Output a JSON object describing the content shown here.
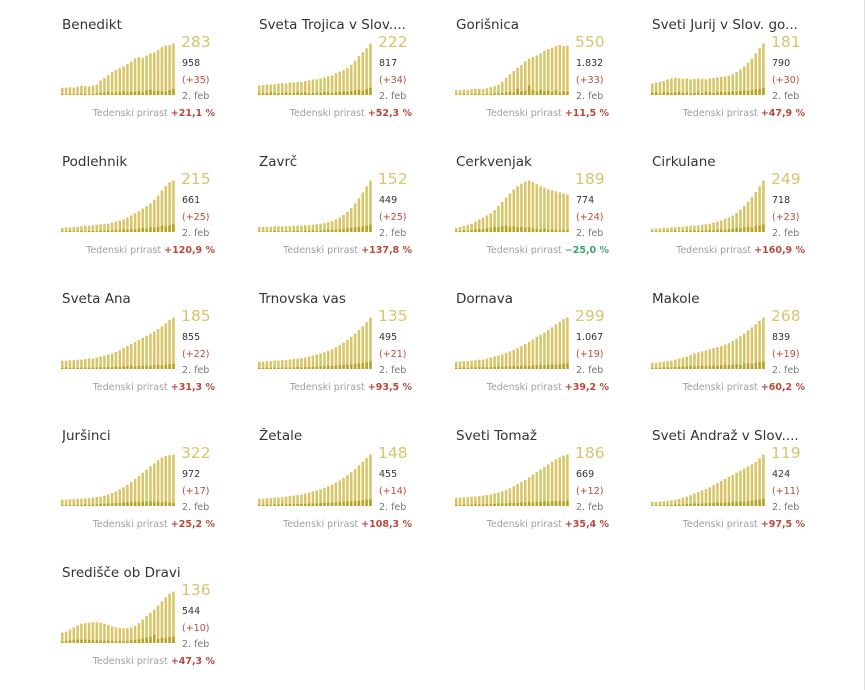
{
  "colors": {
    "area_fill": "#d8c566",
    "bar_dark": "#b6a121",
    "active_number": "#d7c56f",
    "increase": "#b84a3c",
    "decrease": "#3aa568"
  },
  "chart_data": [
    {
      "type": "bar",
      "title": "Benedikt",
      "active": "283",
      "total": "958",
      "daily_new": "(+35)",
      "date": "2. feb",
      "weekly_label": "Tedenski prirast",
      "weekly_growth": "+21,1 %",
      "trend": "up",
      "active_series": [
        14,
        14,
        15,
        14,
        16,
        18,
        17,
        16,
        18,
        20,
        28,
        33,
        38,
        44,
        48,
        52,
        55,
        60,
        64,
        70,
        73,
        71,
        76,
        80,
        82,
        86,
        92,
        95,
        96,
        99
      ],
      "new_series": [
        2,
        1,
        2,
        1,
        2,
        3,
        2,
        1,
        2,
        3,
        4,
        5,
        6,
        4,
        5,
        6,
        7,
        5,
        6,
        6,
        8,
        5,
        9,
        10,
        7,
        8,
        7,
        6,
        9,
        12
      ]
    },
    {
      "type": "bar",
      "title": "Sveta Trojica v Slov....",
      "active": "222",
      "total": "817",
      "daily_new": "(+34)",
      "date": "2. feb",
      "weekly_label": "Tedenski prirast",
      "weekly_growth": "+52,3 %",
      "trend": "up",
      "active_series": [
        18,
        19,
        20,
        20,
        21,
        22,
        23,
        22,
        24,
        24,
        25,
        25,
        27,
        28,
        30,
        30,
        32,
        34,
        36,
        38,
        42,
        45,
        48,
        52,
        58,
        66,
        75,
        82,
        90,
        99
      ],
      "new_series": [
        3,
        4,
        3,
        5,
        4,
        3,
        4,
        5,
        3,
        4,
        6,
        4,
        5,
        3,
        4,
        5,
        4,
        6,
        5,
        4,
        5,
        6,
        7,
        6,
        8,
        9,
        10,
        8,
        11,
        14
      ]
    },
    {
      "type": "bar",
      "title": "Gorišnica",
      "active": "550",
      "total": "1.832",
      "daily_new": "(+33)",
      "date": "2. feb",
      "weekly_label": "Tedenski prirast",
      "weekly_growth": "+11,5 %",
      "trend": "up",
      "active_series": [
        9,
        9,
        10,
        10,
        11,
        12,
        12,
        11,
        13,
        15,
        17,
        20,
        25,
        33,
        40,
        46,
        52,
        58,
        65,
        70,
        73,
        76,
        80,
        85,
        88,
        91,
        94,
        96,
        94,
        95
      ],
      "new_series": [
        1,
        1,
        2,
        1,
        1,
        2,
        2,
        1,
        2,
        2,
        3,
        3,
        4,
        5,
        6,
        5,
        12,
        7,
        8,
        18,
        9,
        6,
        10,
        7,
        8,
        6,
        9,
        5,
        7,
        6
      ]
    },
    {
      "type": "bar",
      "title": "Sveti Jurij v Slov. go...",
      "active": "181",
      "total": "790",
      "daily_new": "(+30)",
      "date": "2. feb",
      "weekly_label": "Tedenski prirast",
      "weekly_growth": "+47,9 %",
      "trend": "up",
      "active_series": [
        22,
        24,
        25,
        27,
        30,
        32,
        33,
        32,
        31,
        32,
        30,
        31,
        32,
        31,
        30,
        32,
        33,
        34,
        35,
        36,
        37,
        40,
        44,
        49,
        55,
        62,
        70,
        80,
        90,
        99
      ],
      "new_series": [
        4,
        5,
        3,
        6,
        5,
        4,
        5,
        6,
        4,
        5,
        3,
        4,
        5,
        4,
        6,
        5,
        4,
        5,
        6,
        5,
        6,
        7,
        6,
        8,
        9,
        8,
        10,
        11,
        12,
        14
      ]
    },
    {
      "type": "bar",
      "title": "Podlehnik",
      "active": "215",
      "total": "661",
      "daily_new": "(+25)",
      "date": "2. feb",
      "weekly_label": "Tedenski prirast",
      "weekly_growth": "+120,9 %",
      "trend": "up",
      "active_series": [
        8,
        9,
        9,
        10,
        10,
        11,
        12,
        12,
        13,
        14,
        15,
        15,
        16,
        18,
        20,
        22,
        24,
        28,
        32,
        36,
        40,
        45,
        50,
        55,
        62,
        70,
        80,
        88,
        96,
        99
      ],
      "new_series": [
        1,
        1,
        2,
        1,
        1,
        2,
        1,
        2,
        2,
        2,
        3,
        2,
        3,
        3,
        4,
        3,
        5,
        4,
        6,
        5,
        6,
        8,
        7,
        9,
        8,
        10,
        12,
        11,
        13,
        15
      ]
    },
    {
      "type": "bar",
      "title": "Zavrč",
      "active": "152",
      "total": "449",
      "daily_new": "(+25)",
      "date": "2. feb",
      "weekly_label": "Tedenski prirast",
      "weekly_growth": "+137,8 %",
      "trend": "up",
      "active_series": [
        10,
        10,
        10,
        10,
        11,
        11,
        11,
        11,
        11,
        12,
        12,
        12,
        13,
        13,
        14,
        15,
        16,
        17,
        19,
        21,
        24,
        28,
        33,
        39,
        46,
        55,
        65,
        76,
        88,
        99
      ],
      "new_series": [
        1,
        1,
        1,
        1,
        2,
        1,
        1,
        2,
        1,
        2,
        2,
        1,
        2,
        2,
        3,
        2,
        3,
        3,
        4,
        4,
        5,
        5,
        6,
        7,
        8,
        9,
        10,
        11,
        12,
        14
      ]
    },
    {
      "type": "bar",
      "title": "Cerkvenjak",
      "active": "189",
      "total": "774",
      "daily_new": "(+24)",
      "date": "2. feb",
      "weekly_label": "Tedenski prirast",
      "weekly_growth": "−25,0 %",
      "trend": "down",
      "active_series": [
        8,
        10,
        12,
        14,
        16,
        20,
        24,
        28,
        32,
        36,
        42,
        50,
        58,
        66,
        74,
        82,
        88,
        93,
        97,
        99,
        96,
        92,
        88,
        85,
        82,
        80,
        78,
        76,
        74,
        72
      ],
      "new_series": [
        1,
        2,
        3,
        2,
        4,
        5,
        6,
        5,
        7,
        8,
        10,
        9,
        11,
        12,
        10,
        11,
        9,
        10,
        8,
        9,
        7,
        6,
        5,
        6,
        4,
        5,
        4,
        3,
        4,
        3
      ]
    },
    {
      "type": "bar",
      "title": "Cirkulane",
      "active": "249",
      "total": "718",
      "daily_new": "(+23)",
      "date": "2. feb",
      "weekly_label": "Tedenski prirast",
      "weekly_growth": "+160,9 %",
      "trend": "up",
      "active_series": [
        6,
        7,
        7,
        8,
        8,
        9,
        9,
        10,
        10,
        11,
        12,
        12,
        13,
        14,
        15,
        16,
        18,
        20,
        22,
        25,
        28,
        32,
        37,
        43,
        50,
        58,
        67,
        77,
        88,
        99
      ],
      "new_series": [
        1,
        1,
        1,
        1,
        2,
        1,
        2,
        1,
        2,
        2,
        2,
        3,
        2,
        3,
        3,
        4,
        3,
        4,
        5,
        4,
        5,
        6,
        8,
        7,
        9,
        10,
        9,
        11,
        12,
        14
      ]
    },
    {
      "type": "bar",
      "title": "Sveta Ana",
      "active": "185",
      "total": "855",
      "daily_new": "(+22)",
      "date": "2. feb",
      "weekly_label": "Tedenski prirast",
      "weekly_growth": "+31,3 %",
      "trend": "up",
      "active_series": [
        16,
        16,
        17,
        17,
        18,
        18,
        19,
        20,
        20,
        22,
        24,
        26,
        28,
        30,
        33,
        36,
        40,
        44,
        48,
        52,
        56,
        60,
        64,
        68,
        72,
        77,
        82,
        88,
        94,
        99
      ],
      "new_series": [
        2,
        3,
        2,
        3,
        2,
        3,
        3,
        2,
        3,
        3,
        4,
        3,
        4,
        4,
        5,
        4,
        5,
        5,
        6,
        5,
        6,
        6,
        7,
        6,
        7,
        8,
        7,
        8,
        9,
        10
      ]
    },
    {
      "type": "bar",
      "title": "Trnovska vas",
      "active": "135",
      "total": "495",
      "daily_new": "(+21)",
      "date": "2. feb",
      "weekly_label": "Tedenski prirast",
      "weekly_growth": "+93,5 %",
      "trend": "up",
      "active_series": [
        14,
        14,
        15,
        15,
        16,
        16,
        17,
        17,
        18,
        19,
        20,
        21,
        22,
        24,
        26,
        28,
        30,
        32,
        35,
        38,
        42,
        46,
        51,
        56,
        62,
        68,
        75,
        82,
        90,
        99
      ],
      "new_series": [
        2,
        2,
        3,
        2,
        3,
        2,
        3,
        3,
        3,
        3,
        4,
        3,
        4,
        4,
        4,
        5,
        5,
        5,
        6,
        6,
        7,
        7,
        8,
        8,
        9,
        10,
        11,
        12,
        13,
        15
      ]
    },
    {
      "type": "bar",
      "title": "Dornava",
      "active": "299",
      "total": "1.067",
      "daily_new": "(+19)",
      "date": "2. feb",
      "weekly_label": "Tedenski prirast",
      "weekly_growth": "+39,2 %",
      "trend": "up",
      "active_series": [
        14,
        14,
        15,
        15,
        16,
        17,
        18,
        18,
        20,
        22,
        24,
        26,
        28,
        31,
        34,
        37,
        40,
        44,
        48,
        52,
        57,
        62,
        66,
        70,
        75,
        80,
        86,
        91,
        96,
        99
      ],
      "new_series": [
        2,
        2,
        3,
        2,
        3,
        3,
        3,
        4,
        3,
        4,
        4,
        5,
        4,
        5,
        5,
        6,
        5,
        6,
        7,
        6,
        7,
        7,
        8,
        7,
        8,
        9,
        8,
        9,
        10,
        11
      ]
    },
    {
      "type": "bar",
      "title": "Makole",
      "active": "268",
      "total": "839",
      "daily_new": "(+19)",
      "date": "2. feb",
      "weekly_label": "Tedenski prirast",
      "weekly_growth": "+60,2 %",
      "trend": "up",
      "active_series": [
        12,
        12,
        13,
        14,
        15,
        16,
        18,
        20,
        22,
        24,
        27,
        30,
        32,
        34,
        36,
        38,
        40,
        42,
        44,
        47,
        50,
        54,
        58,
        63,
        68,
        74,
        80,
        86,
        93,
        99
      ],
      "new_series": [
        2,
        2,
        2,
        3,
        3,
        3,
        4,
        4,
        5,
        5,
        6,
        5,
        6,
        6,
        5,
        6,
        7,
        6,
        7,
        8,
        7,
        8,
        9,
        8,
        10,
        11,
        10,
        12,
        13,
        15
      ]
    },
    {
      "type": "bar",
      "title": "Juršinci",
      "active": "322",
      "total": "972",
      "daily_new": "(+17)",
      "date": "2. feb",
      "weekly_label": "Tedenski prirast",
      "weekly_growth": "+25,2 %",
      "trend": "up",
      "active_series": [
        12,
        12,
        13,
        13,
        14,
        14,
        15,
        15,
        16,
        17,
        18,
        20,
        22,
        25,
        28,
        32,
        36,
        41,
        46,
        52,
        58,
        64,
        70,
        76,
        82,
        88,
        93,
        96,
        98,
        99
      ],
      "new_series": [
        1,
        2,
        1,
        2,
        2,
        2,
        3,
        2,
        3,
        3,
        4,
        4,
        5,
        5,
        6,
        6,
        7,
        7,
        8,
        8,
        8,
        9,
        8,
        9,
        8,
        9,
        7,
        8,
        7,
        6
      ]
    },
    {
      "type": "bar",
      "title": "Žetale",
      "active": "148",
      "total": "455",
      "daily_new": "(+14)",
      "date": "2. feb",
      "weekly_label": "Tedenski prirast",
      "weekly_growth": "+108,3 %",
      "trend": "up",
      "active_series": [
        14,
        14,
        15,
        15,
        16,
        16,
        17,
        18,
        19,
        20,
        21,
        22,
        24,
        26,
        28,
        30,
        32,
        35,
        38,
        41,
        45,
        49,
        54,
        59,
        65,
        71,
        78,
        85,
        92,
        99
      ],
      "new_series": [
        2,
        2,
        3,
        2,
        3,
        3,
        3,
        3,
        4,
        3,
        4,
        4,
        4,
        5,
        5,
        5,
        6,
        6,
        6,
        7,
        7,
        8,
        8,
        9,
        9,
        10,
        10,
        11,
        12,
        13
      ]
    },
    {
      "type": "bar",
      "title": "Sveti Tomaž",
      "active": "186",
      "total": "669",
      "daily_new": "(+12)",
      "date": "2. feb",
      "weekly_label": "Tedenski prirast",
      "weekly_growth": "+35,4 %",
      "trend": "up",
      "active_series": [
        16,
        16,
        17,
        17,
        18,
        18,
        19,
        20,
        21,
        22,
        24,
        26,
        28,
        31,
        34,
        38,
        42,
        46,
        50,
        55,
        60,
        65,
        70,
        75,
        80,
        85,
        90,
        94,
        97,
        99
      ],
      "new_series": [
        2,
        2,
        3,
        2,
        3,
        3,
        3,
        3,
        4,
        4,
        4,
        5,
        5,
        5,
        6,
        6,
        6,
        7,
        7,
        8,
        7,
        8,
        8,
        9,
        8,
        9,
        9,
        10,
        9,
        10
      ]
    },
    {
      "type": "bar",
      "title": "Sveti Andraž v Slov....",
      "active": "119",
      "total": "424",
      "daily_new": "(+11)",
      "date": "2. feb",
      "weekly_label": "Tedenski prirast",
      "weekly_growth": "+97,5 %",
      "trend": "up",
      "active_series": [
        8,
        8,
        9,
        9,
        10,
        11,
        12,
        14,
        16,
        18,
        21,
        24,
        27,
        30,
        33,
        36,
        40,
        44,
        48,
        52,
        56,
        60,
        64,
        68,
        72,
        76,
        80,
        85,
        92,
        99
      ],
      "new_series": [
        1,
        1,
        1,
        2,
        2,
        2,
        3,
        3,
        3,
        4,
        4,
        5,
        4,
        5,
        5,
        6,
        6,
        7,
        6,
        7,
        7,
        8,
        8,
        9,
        8,
        9,
        10,
        11,
        12,
        14
      ]
    },
    {
      "type": "bar",
      "title": "Središče ob Dravi",
      "active": "136",
      "total": "544",
      "daily_new": "(+10)",
      "date": "2. feb",
      "weekly_label": "Tedenski prirast",
      "weekly_growth": "+47,3 %",
      "trend": "up",
      "active_series": [
        20,
        22,
        26,
        30,
        34,
        37,
        38,
        39,
        40,
        40,
        39,
        37,
        35,
        32,
        30,
        29,
        28,
        29,
        30,
        33,
        38,
        45,
        52,
        58,
        64,
        72,
        80,
        88,
        95,
        99
      ],
      "new_series": [
        3,
        4,
        5,
        6,
        7,
        6,
        7,
        6,
        5,
        6,
        5,
        4,
        5,
        4,
        3,
        4,
        3,
        4,
        5,
        6,
        7,
        8,
        10,
        12,
        16,
        8,
        10,
        9,
        11,
        12
      ]
    }
  ]
}
